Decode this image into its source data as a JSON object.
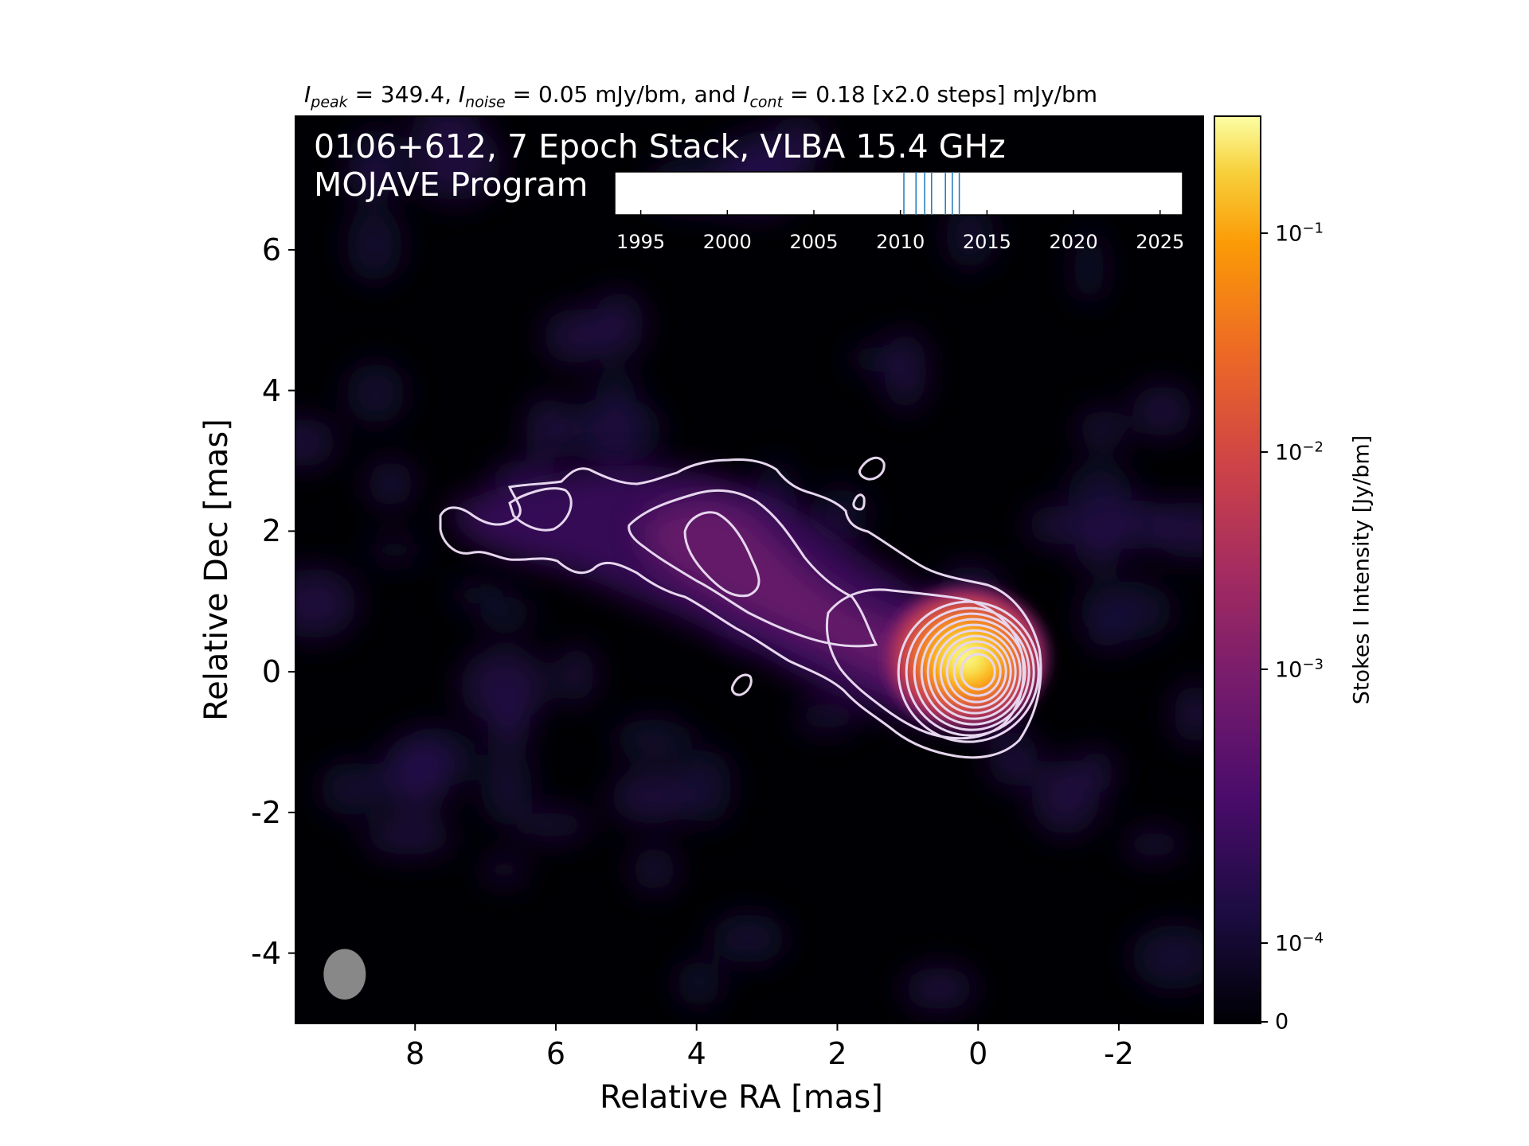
{
  "chart_data": {
    "type": "heatmap",
    "title_parts": {
      "peak_label": "I",
      "peak_sub": "peak",
      "peak_value": " = 349.4, ",
      "noise_label": "I",
      "noise_sub": "noise",
      "noise_value": " = 0.05 mJy/bm, and ",
      "cont_label": "I",
      "cont_sub": "cont",
      "cont_value": " = 0.18 [x2.0 steps] mJy/bm"
    },
    "image_title_line1": "0106+612, 7 Epoch Stack, VLBA 15.4 GHz",
    "image_title_line2": "MOJAVE Program",
    "xlabel": "Relative RA [mas]",
    "ylabel": "Relative Dec [mas]",
    "x_axis_inverted": true,
    "xlim": [
      9.7,
      -3.2
    ],
    "ylim": [
      -5.0,
      7.9
    ],
    "x_ticks": [
      8,
      6,
      4,
      2,
      0,
      -2
    ],
    "x_tick_labels": [
      "8",
      "6",
      "4",
      "2",
      "0",
      "-2"
    ],
    "y_ticks": [
      6,
      4,
      2,
      0,
      -2,
      -4
    ],
    "y_tick_labels": [
      "6",
      "4",
      "2",
      "0",
      "-2",
      "-4"
    ],
    "colormap": "inferno",
    "contour_color": "#e6d6ee",
    "beam": {
      "center_ra": 9.0,
      "center_dec": -4.3,
      "major_mas": 0.72,
      "minor_mas": 0.6,
      "color": "#888888"
    },
    "peak_position": [
      0,
      0
    ],
    "colorbar": {
      "label": "Stokes I Intensity [Jy/bm]",
      "scale": "log",
      "ticks": [
        {
          "value": 0.1,
          "base": "10",
          "exp": "−1"
        },
        {
          "value": 0.01,
          "base": "10",
          "exp": "−2"
        },
        {
          "value": 0.001,
          "base": "10",
          "exp": "−3"
        },
        {
          "value": 0.0001,
          "base": "10",
          "exp": "−4"
        },
        {
          "value": 0,
          "base": "0",
          "exp": ""
        }
      ]
    },
    "epoch_timeline": {
      "xlim": [
        1993.5,
        2026.3
      ],
      "ticks": [
        1995,
        2000,
        2005,
        2010,
        2015,
        2020,
        2025
      ],
      "tick_labels": [
        "1995",
        "2000",
        "2005",
        "2010",
        "2015",
        "2020",
        "2025"
      ],
      "epochs": [
        2010.2,
        2010.9,
        2011.4,
        2011.8,
        2012.6,
        2013.0,
        2013.4
      ],
      "epoch_color": "#1f77b4"
    }
  }
}
